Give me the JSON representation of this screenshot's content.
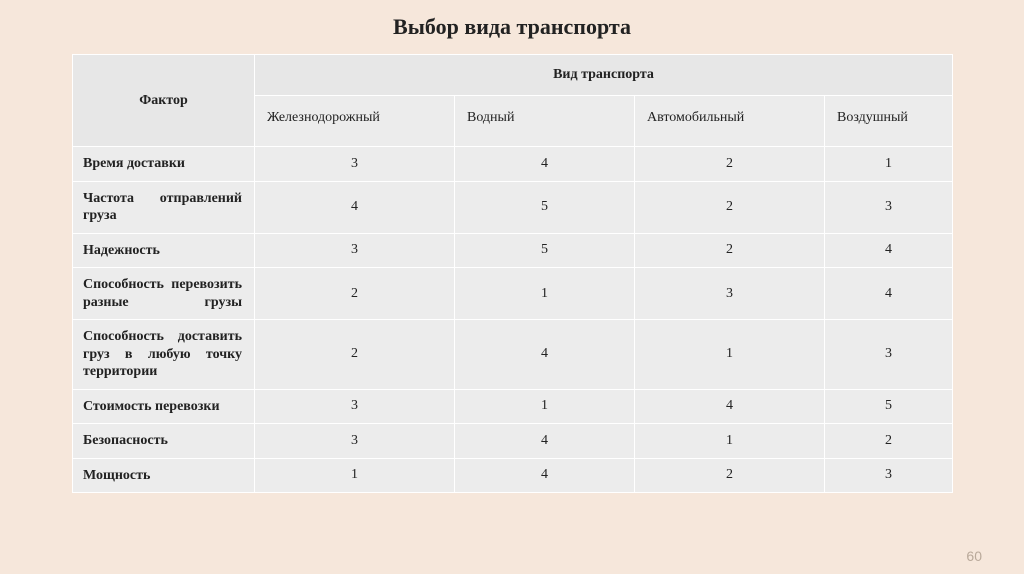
{
  "title": "Выбор вида транспорта",
  "page_number": "60",
  "table": {
    "header": {
      "factor": "Фактор",
      "group": "Вид транспорта",
      "columns": [
        "Железнодорожный",
        "Водный",
        "Автомобильный",
        "Воздушный"
      ]
    },
    "rows": [
      {
        "factor": "Время доставки",
        "single": true,
        "values": [
          "3",
          "4",
          "2",
          "1"
        ]
      },
      {
        "factor": "Частота отправлений груза",
        "single": false,
        "values": [
          "4",
          "5",
          "2",
          "3"
        ]
      },
      {
        "factor": "Надежность",
        "single": true,
        "values": [
          "3",
          "5",
          "2",
          "4"
        ]
      },
      {
        "factor": "Способность перевозить разные грузы",
        "single": false,
        "values": [
          "2",
          "1",
          "3",
          "4"
        ]
      },
      {
        "factor": "Способность доставить груз в любую точку территории",
        "single": false,
        "values": [
          "2",
          "4",
          "1",
          "3"
        ]
      },
      {
        "factor": "Стоимость перевозки",
        "single": true,
        "values": [
          "3",
          "1",
          "4",
          "5"
        ]
      },
      {
        "factor": "Безопасность",
        "single": true,
        "values": [
          "3",
          "4",
          "1",
          "2"
        ]
      },
      {
        "factor": "Мощность",
        "single": true,
        "values": [
          "1",
          "4",
          "2",
          "3"
        ]
      }
    ]
  },
  "colors": {
    "page_bg": "#f6e7db",
    "cell_bg": "#ececec",
    "header_bg": "#e7e7e7",
    "border": "#ffffff",
    "text": "#222222",
    "pagenum": "#b9a99a"
  }
}
